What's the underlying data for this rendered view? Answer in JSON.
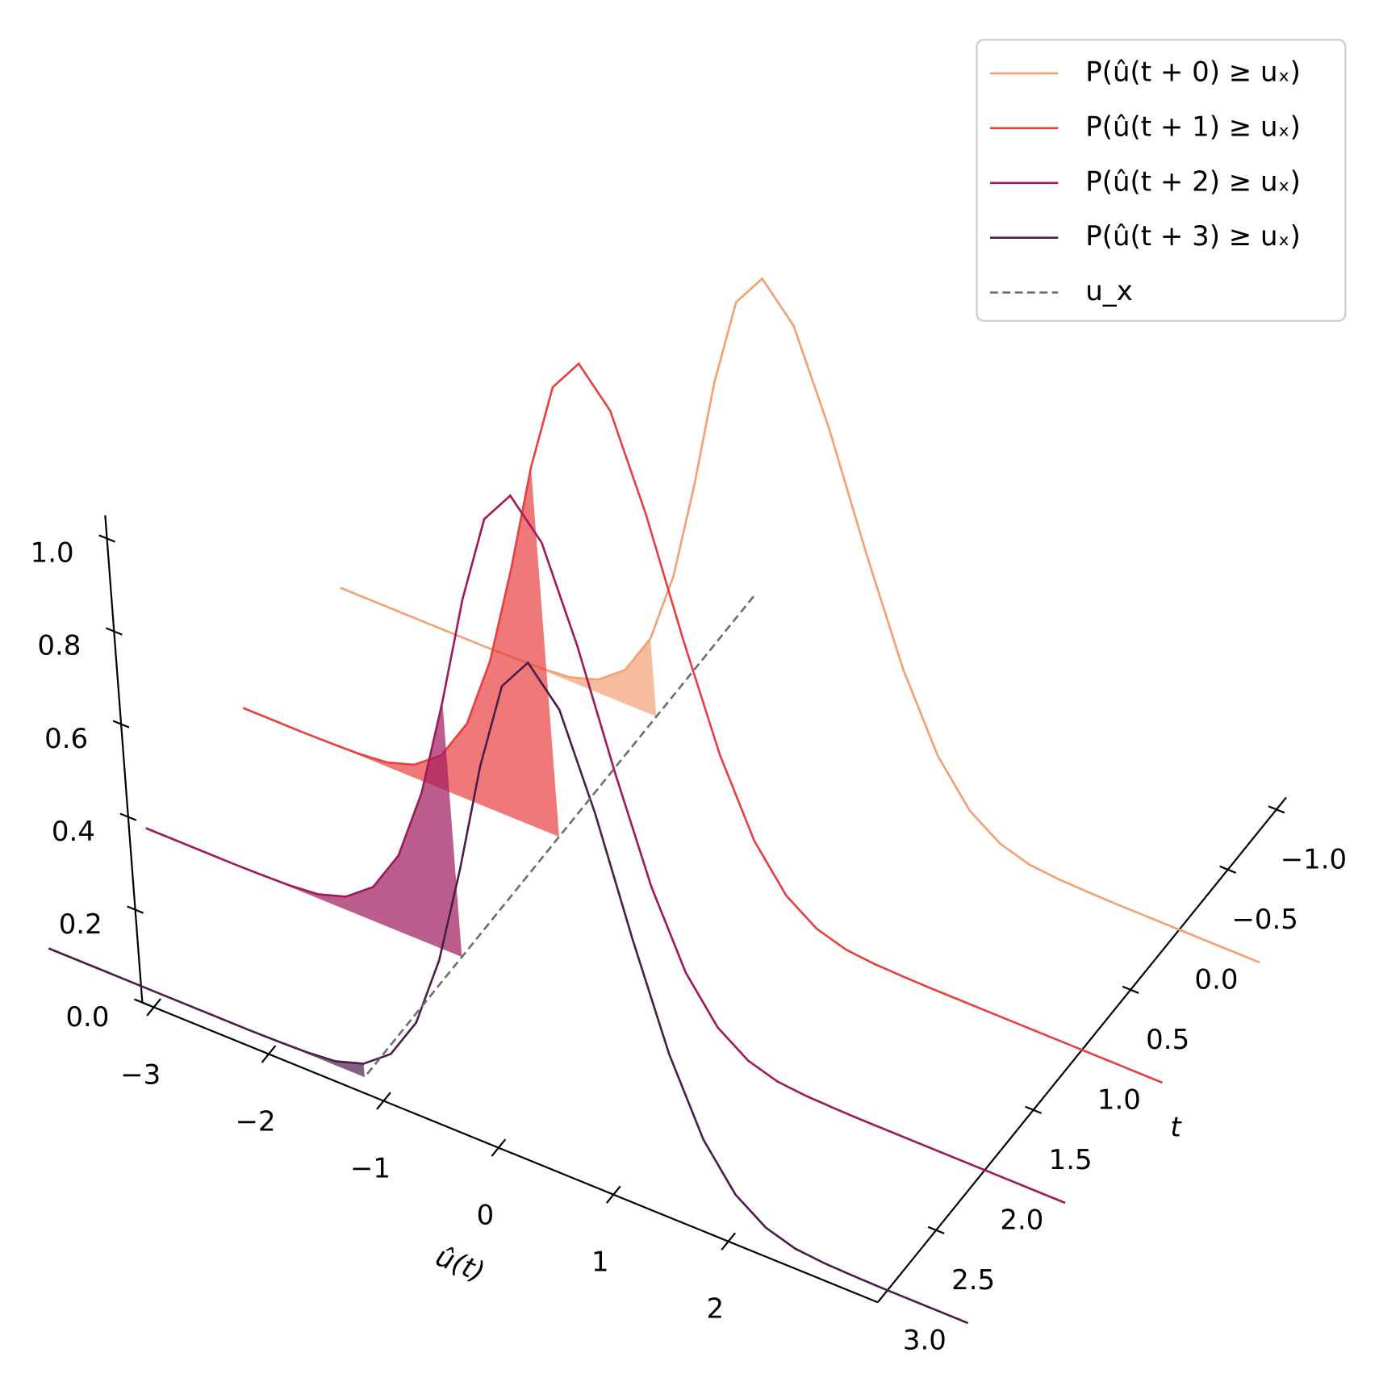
{
  "chart_data": {
    "type": "ridgeline3d",
    "xlabel": "û(t)",
    "ylabel": "t",
    "x": [
      -4,
      -3.75,
      -3.5,
      -3.25,
      -3,
      -2.75,
      -2.5,
      -2.25,
      -2,
      -1.75,
      -1.5,
      -1.25,
      -1,
      -0.75,
      -0.5,
      -0.25,
      0,
      0.25,
      0.5,
      0.75,
      1,
      1.25,
      1.5,
      1.75,
      2,
      2.25,
      2.5,
      2.75,
      3,
      3.25,
      3.5,
      3.75,
      4
    ],
    "series": [
      {
        "name": "P(û(t + 0) ≥ uₓ)",
        "color": "#f4a073",
        "t": 0,
        "values": [
          0,
          0,
          0,
          0,
          0,
          0,
          0.001,
          0.003,
          0.009,
          0.029,
          0.075,
          0.168,
          0.328,
          0.55,
          0.796,
          0.994,
          1.07,
          0.994,
          0.796,
          0.55,
          0.328,
          0.168,
          0.075,
          0.029,
          0.009,
          0.003,
          0.001,
          0,
          0,
          0,
          0,
          0,
          0
        ]
      },
      {
        "name": "P(û(t + 1) ≥ uₓ)",
        "color": "#e8403e",
        "t": 1,
        "values": [
          0,
          0,
          0,
          0.001,
          0.003,
          0.009,
          0.029,
          0.075,
          0.168,
          0.328,
          0.55,
          0.796,
          0.994,
          1.07,
          0.994,
          0.796,
          0.55,
          0.328,
          0.168,
          0.075,
          0.029,
          0.009,
          0.003,
          0.001,
          0,
          0,
          0,
          0,
          0,
          0,
          0,
          0,
          0
        ]
      },
      {
        "name": "P(û(t + 2) ≥ uₓ)",
        "color": "#a0195c",
        "t": 2,
        "values": [
          0,
          0,
          0,
          0,
          0.001,
          0.003,
          0.009,
          0.029,
          0.075,
          0.168,
          0.328,
          0.55,
          0.796,
          0.994,
          1.07,
          0.994,
          0.796,
          0.55,
          0.328,
          0.168,
          0.075,
          0.029,
          0.009,
          0.003,
          0.001,
          0,
          0,
          0,
          0,
          0,
          0,
          0,
          0
        ]
      },
      {
        "name": "P(û(t + 3) ≥ uₓ)",
        "color": "#4b1d4b",
        "t": 3,
        "values": [
          0,
          0,
          0,
          0,
          0,
          0,
          0,
          0,
          0.001,
          0.003,
          0.009,
          0.029,
          0.075,
          0.168,
          0.328,
          0.55,
          0.796,
          0.994,
          1.07,
          0.994,
          0.796,
          0.55,
          0.328,
          0.168,
          0.075,
          0.029,
          0.009,
          0.003,
          0.001,
          0,
          0,
          0,
          0
        ]
      }
    ],
    "threshold": {
      "name": "u_x",
      "color": "#6e6e6e",
      "value": -1.25,
      "t_range": [
        -1,
        3
      ]
    },
    "fill_alpha": 0.7,
    "xlim": [
      -3.1,
      3.3
    ],
    "ylim": [
      -1.1,
      3.1
    ],
    "zlim": [
      0,
      1.05
    ],
    "xticks": [
      {
        "value": -3,
        "label": "−3"
      },
      {
        "value": -2,
        "label": "−2"
      },
      {
        "value": -1,
        "label": "−1"
      },
      0,
      1,
      2
    ],
    "yticks": [
      {
        "value": -1,
        "label": "−1.0"
      },
      {
        "value": -0.5,
        "label": "−0.5"
      },
      {
        "value": 0,
        "label": "0.0"
      },
      0.5,
      {
        "value": 1,
        "label": "1.0"
      },
      1.5,
      {
        "value": 2,
        "label": "2.0"
      },
      2.5,
      {
        "value": 3,
        "label": "3.0"
      }
    ],
    "zticks": [
      {
        "value": 0,
        "label": "0.0"
      },
      0.2,
      0.4,
      0.6,
      0.8,
      {
        "value": 1,
        "label": "1.0"
      }
    ],
    "legend": "upper right"
  }
}
